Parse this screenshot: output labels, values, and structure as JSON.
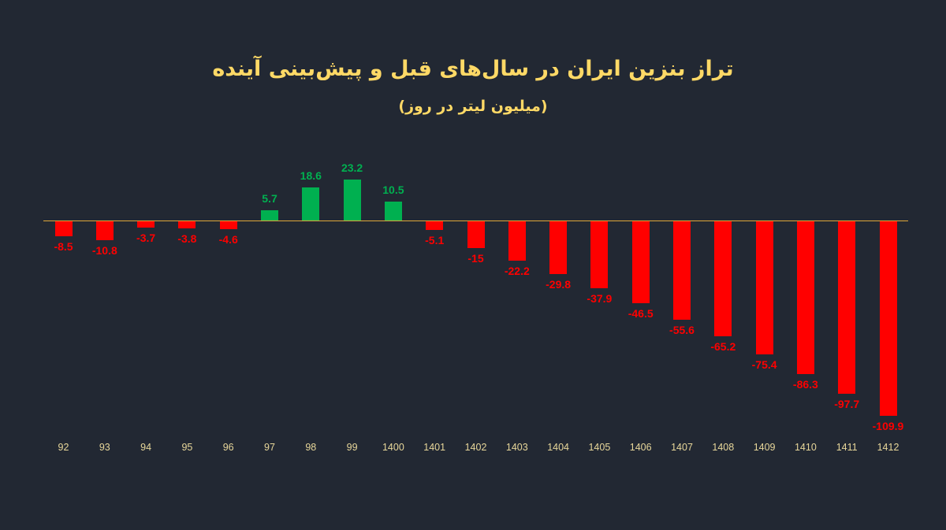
{
  "title": "تراز بنزین ایران در سال‌های قبل و پیش‌بینی آینده",
  "subtitle": "(میلیون لیتر در روز)",
  "colors": {
    "background": "#222833",
    "positive": "#00b050",
    "negative": "#ff0000",
    "title": "#ffd966",
    "axis": "#e0a83a",
    "tick": "#e8d79a"
  },
  "chart_data": {
    "type": "bar",
    "title": "تراز بنزین ایران در سال‌های قبل و پیش‌بینی آینده",
    "subtitle": "(میلیون لیتر در روز)",
    "xlabel": "",
    "ylabel": "",
    "grid": false,
    "legend": "none",
    "categories": [
      "92",
      "93",
      "94",
      "95",
      "96",
      "97",
      "98",
      "99",
      "1400",
      "1401",
      "1402",
      "1403",
      "1404",
      "1405",
      "1406",
      "1407",
      "1408",
      "1409",
      "1410",
      "1411",
      "1412"
    ],
    "values": [
      -8.5,
      -10.8,
      -3.7,
      -3.8,
      -4.6,
      5.7,
      18.6,
      23.2,
      10.5,
      -5.1,
      -15,
      -22.2,
      -29.8,
      -37.9,
      -46.5,
      -55.6,
      -65.2,
      -75.4,
      -86.3,
      -97.7,
      -109.9
    ],
    "labels": [
      "-8.5",
      "-10.8",
      "-3.7",
      "-3.8",
      "-4.6",
      "5.7",
      "18.6",
      "23.2",
      "10.5",
      "-5.1",
      "-15",
      "-22.2",
      "-29.8",
      "-37.9",
      "-46.5",
      "-55.6",
      "-65.2",
      "-75.4",
      "-86.3",
      "-97.7",
      "-109.9"
    ],
    "ylim": [
      -115,
      25
    ]
  }
}
